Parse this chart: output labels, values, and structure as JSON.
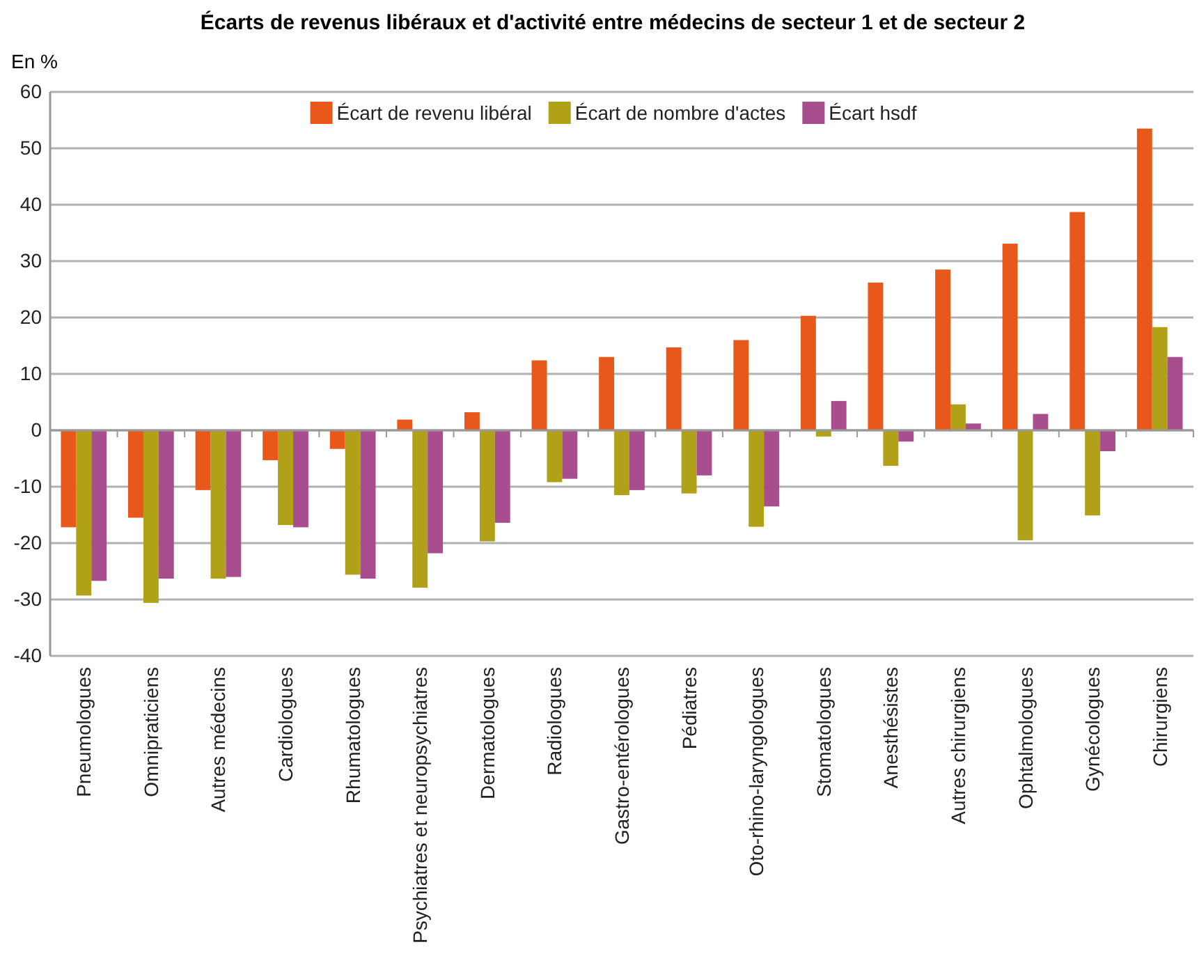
{
  "chart_data": {
    "type": "bar",
    "title": "Écarts de revenus libéraux et d'activité entre médecins de secteur 1 et de secteur 2",
    "ylabel": "En %",
    "categories": [
      "Pneumologues",
      "Omnipraticiens",
      "Autres médecins",
      "Cardiologues",
      "Rhumatologues",
      "Psychiatres et neuropsychiatres",
      "Dermatologues",
      "Radiologues",
      "Gastro-entérologues",
      "Pédiatres",
      "Oto-rhino-laryngologues",
      "Stomatologues",
      "Anesthésistes",
      "Autres chirurgiens",
      "Ophtalmologues",
      "Gynécologues",
      "Chirurgiens"
    ],
    "series": [
      {
        "name": "Écart de revenu libéral",
        "color": "#e8581a",
        "values": [
          -17.2,
          -15.5,
          -10.6,
          -5.3,
          -3.3,
          1.9,
          3.2,
          12.4,
          13.0,
          14.7,
          16.0,
          20.3,
          26.2,
          28.5,
          33.1,
          38.7,
          53.5
        ]
      },
      {
        "name": "Écart de nombre d'actes",
        "color": "#b1a118",
        "values": [
          -29.3,
          -30.6,
          -26.3,
          -16.8,
          -25.6,
          -27.9,
          -19.7,
          -9.2,
          -11.5,
          -11.2,
          -17.1,
          -1.1,
          -6.3,
          4.6,
          -19.5,
          -15.1,
          18.3
        ]
      },
      {
        "name": "Écart hsdf",
        "color": "#a84d8e",
        "values": [
          -26.7,
          -26.3,
          -26.0,
          -17.2,
          -26.3,
          -21.8,
          -16.4,
          -8.6,
          -10.6,
          -8.0,
          -13.5,
          5.2,
          -2.0,
          1.2,
          2.9,
          -3.7,
          13.0
        ]
      }
    ],
    "ylim": [
      -40,
      60
    ],
    "yticks": [
      -40,
      -30,
      -20,
      -10,
      0,
      10,
      20,
      30,
      40,
      50,
      60
    ],
    "grid": "y",
    "legend": "top"
  }
}
